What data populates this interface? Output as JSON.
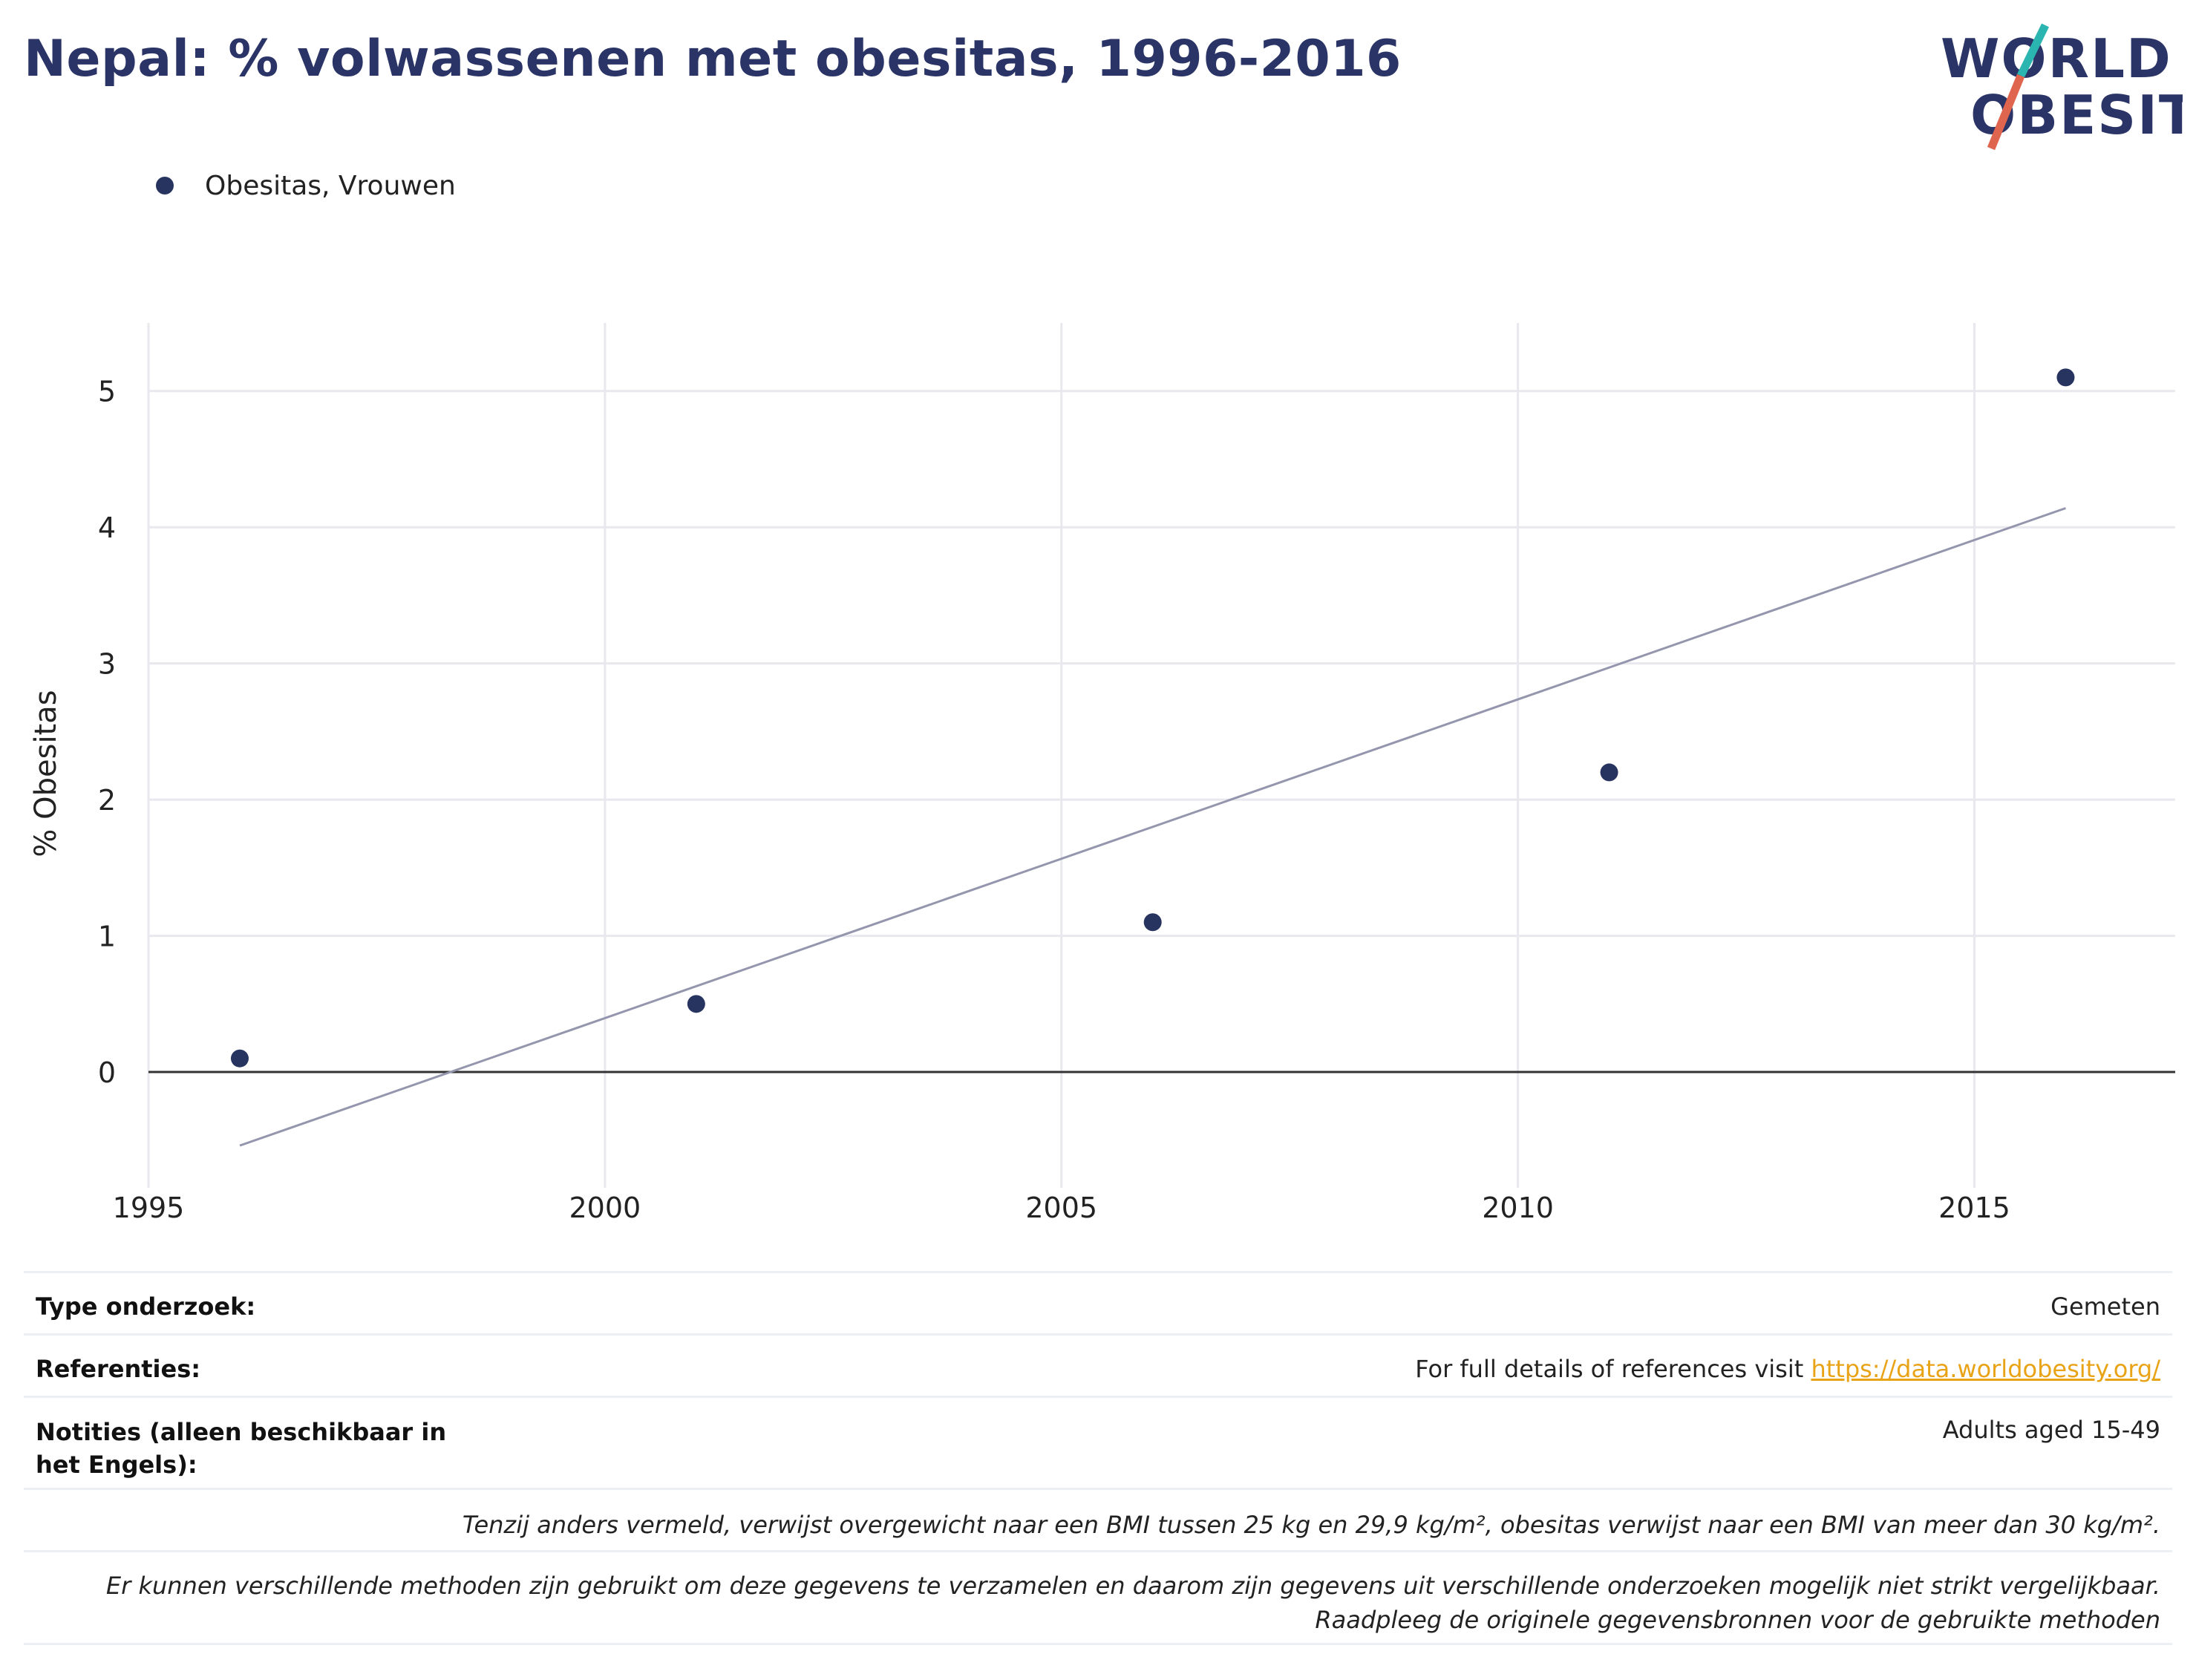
{
  "title": "Nepal: % volwassenen met obesitas, 1996-2016",
  "logo": {
    "line1": "WORLD",
    "line2": "OBESITY",
    "colors": {
      "text": "#2b3466",
      "slash_top": "#2ab5b0",
      "slash_bottom": "#e0654e"
    }
  },
  "legend": {
    "label": "Obesitas, Vrouwen"
  },
  "colors": {
    "points": "#283460",
    "trend": "#9496ad",
    "grid": "#e8e8ee",
    "zero_line": "#333333",
    "link": "#e8a317"
  },
  "chart_data": {
    "type": "scatter",
    "title": "Nepal: % volwassenen met obesitas, 1996-2016",
    "xlabel": "",
    "ylabel": "% Obesitas",
    "xlim": [
      1995,
      2017.2
    ],
    "ylim": [
      -0.85,
      5.5
    ],
    "x_ticks": [
      1995,
      2000,
      2005,
      2010,
      2015
    ],
    "y_ticks": [
      0,
      1,
      2,
      3,
      4,
      5
    ],
    "grid": true,
    "legend_position": "top-left",
    "series": [
      {
        "name": "Obesitas, Vrouwen",
        "x": [
          1996,
          2001,
          2006,
          2011,
          2016
        ],
        "y": [
          0.1,
          0.5,
          1.1,
          2.2,
          5.1
        ]
      }
    ],
    "trendline": {
      "x": [
        1996,
        2016
      ],
      "y": [
        -0.54,
        4.14
      ]
    }
  },
  "info": {
    "survey_type_label": "Type onderzoek:",
    "survey_type_value": "Gemeten",
    "references_label": "Referenties:",
    "references_text": "For full details of references visit ",
    "references_link": "https://data.worldobesity.org/",
    "notes_label": "Notities (alleen beschikbaar in het Engels):",
    "notes_value": "Adults aged 15-49",
    "bmi_note": "Tenzij anders vermeld, verwijst overgewicht naar een BMI tussen 25 kg en 29,9 kg/m², obesitas verwijst naar een BMI van meer dan 30 kg/m².",
    "methods_note": "Er kunnen verschillende methoden zijn gebruikt om deze gegevens te verzamelen en daarom zijn gegevens uit verschillende onderzoeken mogelijk niet strikt vergelijkbaar. Raadpleeg de originele gegevensbronnen voor de gebruikte methoden"
  }
}
